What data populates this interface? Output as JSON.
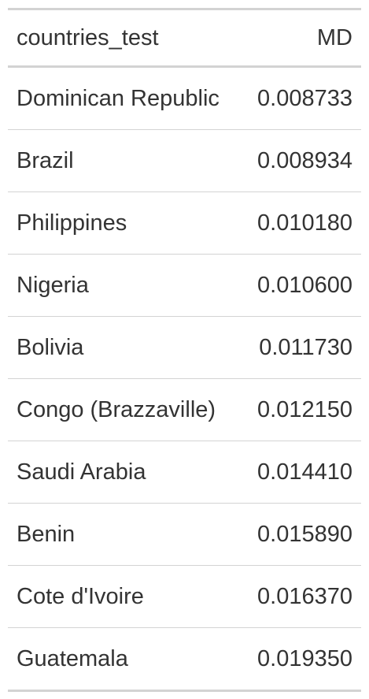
{
  "table": {
    "columns": [
      "countries_test",
      "MD"
    ],
    "rows": [
      {
        "country": "Dominican Republic",
        "md": "0.008733"
      },
      {
        "country": "Brazil",
        "md": "0.008934"
      },
      {
        "country": "Philippines",
        "md": "0.010180"
      },
      {
        "country": "Nigeria",
        "md": "0.010600"
      },
      {
        "country": "Bolivia",
        "md": "0.011730"
      },
      {
        "country": "Congo (Brazzaville)",
        "md": "0.012150"
      },
      {
        "country": "Saudi Arabia",
        "md": "0.014410"
      },
      {
        "country": "Benin",
        "md": "0.015890"
      },
      {
        "country": "Cote d'Ivoire",
        "md": "0.016370"
      },
      {
        "country": "Guatemala",
        "md": "0.019350"
      }
    ]
  },
  "colors": {
    "text": "#333333",
    "rule": "#d3d3d3",
    "background": "#ffffff"
  }
}
